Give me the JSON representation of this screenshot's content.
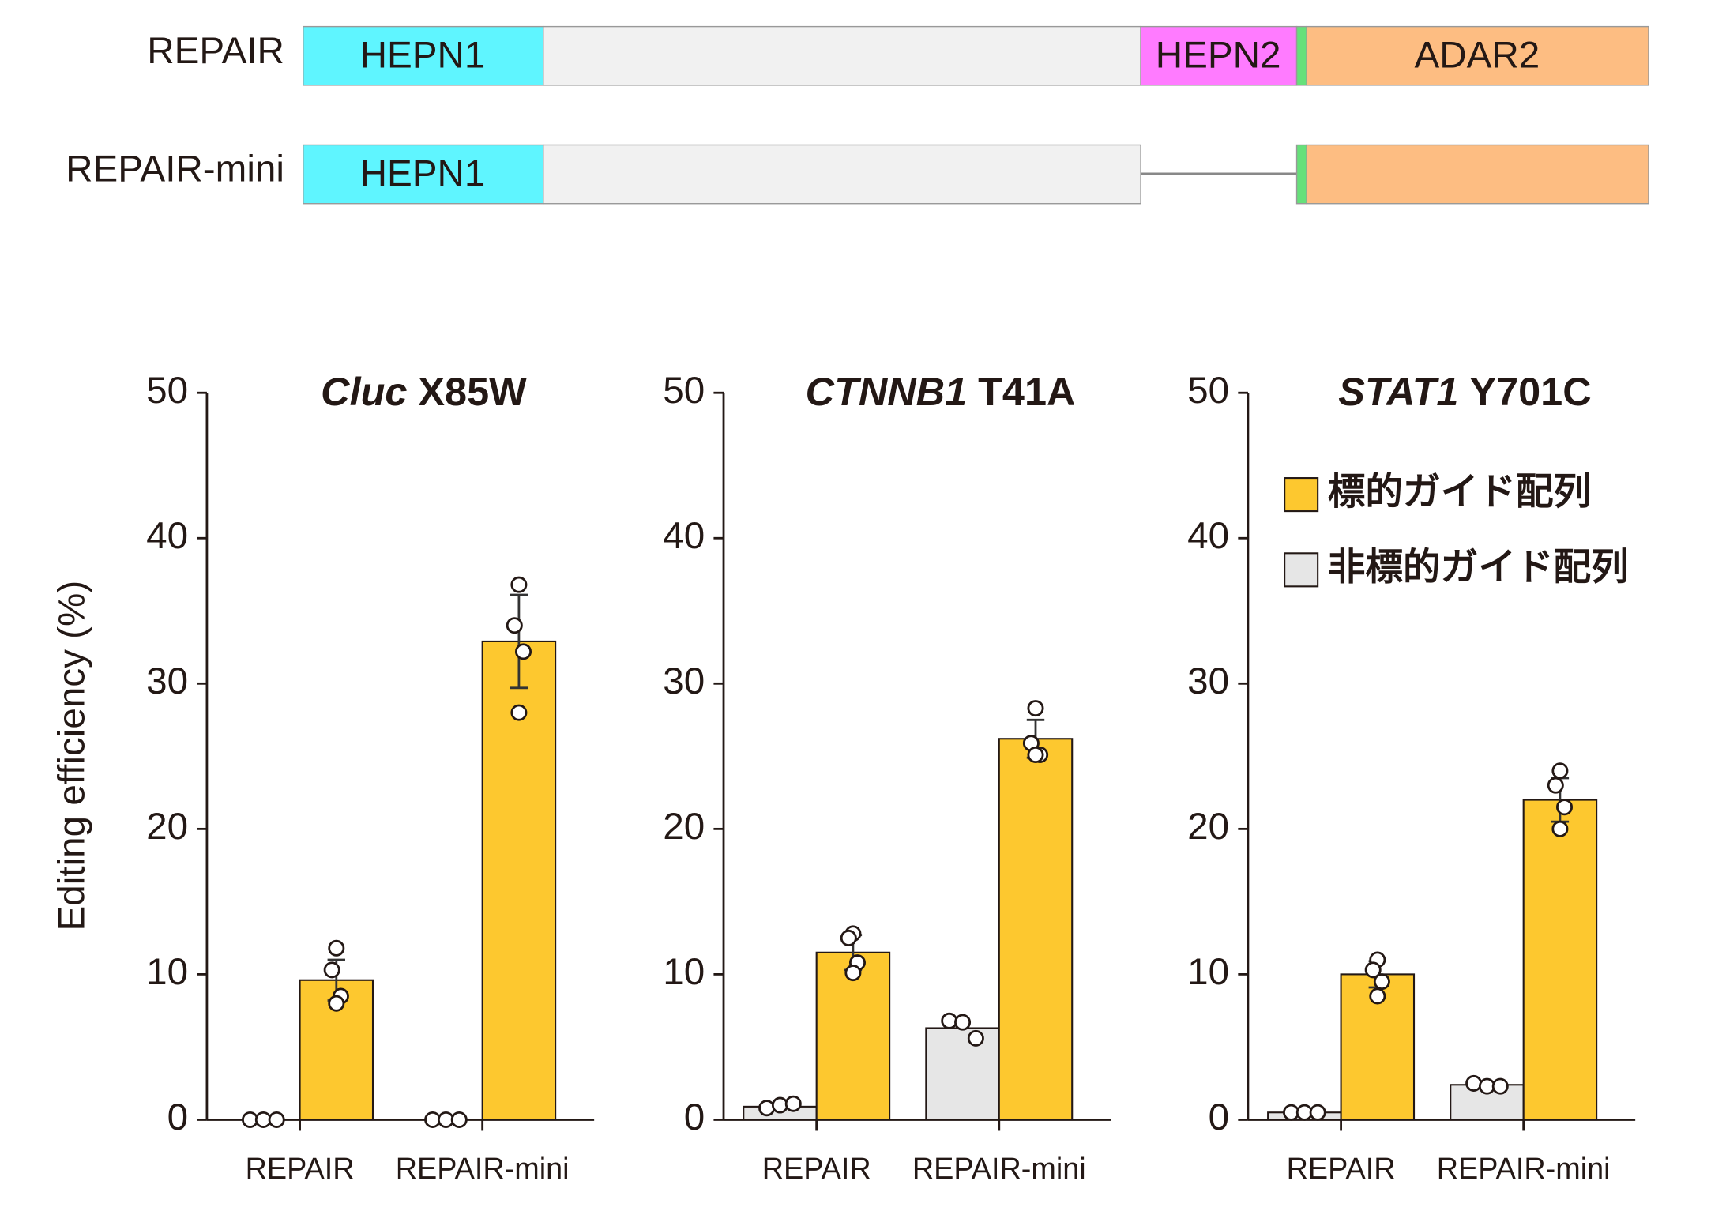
{
  "diagram": {
    "constructs": [
      {
        "name": "REPAIR",
        "domains": [
          "HEPN1",
          "HEPN2",
          "ADAR2"
        ]
      },
      {
        "name": "REPAIR-mini",
        "domains": [
          "HEPN1"
        ]
      }
    ]
  },
  "chart_data": [
    {
      "type": "bar",
      "title": {
        "gene": "Cluc",
        "site": "X85W"
      },
      "ylabel": "Editing efficiency (%)",
      "categories": [
        "REPAIR",
        "REPAIR-mini"
      ],
      "ylim": [
        0,
        50
      ],
      "yticks": [
        0,
        10,
        20,
        30,
        40,
        50
      ],
      "series": [
        {
          "color": "#e6e6e6",
          "values": [
            0,
            0
          ],
          "points": [
            [
              0,
              0,
              0
            ],
            [
              0,
              0,
              0
            ]
          ]
        },
        {
          "color": "#fdc82f",
          "values": [
            9.6,
            32.9
          ],
          "errors": [
            1.4,
            3.2
          ],
          "points": [
            [
              11.8,
              10.3,
              8.5,
              8
            ],
            [
              36.8,
              34,
              32.2,
              28
            ]
          ]
        }
      ]
    },
    {
      "type": "bar",
      "title": {
        "gene": "CTNNB1",
        "site": "T41A"
      },
      "categories": [
        "REPAIR",
        "REPAIR-mini"
      ],
      "ylim": [
        0,
        50
      ],
      "yticks": [
        0,
        10,
        20,
        30,
        40,
        50
      ],
      "series": [
        {
          "color": "#e6e6e6",
          "values": [
            0.9,
            6.3
          ],
          "points": [
            [
              0.8,
              1,
              1.1
            ],
            [
              6.8,
              6.7,
              5.6
            ]
          ]
        },
        {
          "color": "#fdc82f",
          "values": [
            11.5,
            26.2
          ],
          "errors": [
            1.2,
            1.3
          ],
          "points": [
            [
              12.8,
              12.5,
              10.8,
              10.1
            ],
            [
              28.3,
              25.9,
              25.1,
              25.1
            ]
          ]
        }
      ]
    },
    {
      "type": "bar",
      "title": {
        "gene": "STAT1",
        "site": "Y701C"
      },
      "categories": [
        "REPAIR",
        "REPAIR-mini"
      ],
      "ylim": [
        0,
        50
      ],
      "yticks": [
        0,
        10,
        20,
        30,
        40,
        50
      ],
      "series": [
        {
          "name": "非標的ガイド配列",
          "color": "#e6e6e6",
          "values": [
            0.5,
            2.4
          ],
          "points": [
            [
              0.5,
              0.5,
              0.5
            ],
            [
              2.5,
              2.3,
              2.3
            ]
          ]
        },
        {
          "name": "標的ガイド配列",
          "color": "#fdc82f",
          "values": [
            10,
            22
          ],
          "errors": [
            0.9,
            1.5
          ],
          "points": [
            [
              11,
              10.3,
              9.5,
              8.5
            ],
            [
              24,
              23,
              21.5,
              20
            ]
          ]
        }
      ]
    }
  ]
}
